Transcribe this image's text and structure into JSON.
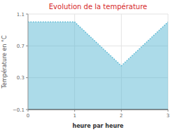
{
  "chart_data": {
    "type": "area",
    "title": "Evolution de la température",
    "x_label": "heure par heure",
    "y_label": "Température en °C",
    "x": [
      0,
      1,
      2,
      3
    ],
    "values": [
      1.0,
      1.0,
      0.45,
      1.0
    ],
    "color": "#5ab8d4",
    "line_style": "dotted",
    "xlim": [
      0,
      3
    ],
    "ylim": [
      -0.1,
      1.1
    ],
    "xticks": [
      0,
      1,
      2,
      3
    ],
    "yticks": [
      {
        "value": -0.1,
        "label": "−0.1"
      },
      0.3,
      0.7,
      1.1
    ],
    "grid": true
  }
}
